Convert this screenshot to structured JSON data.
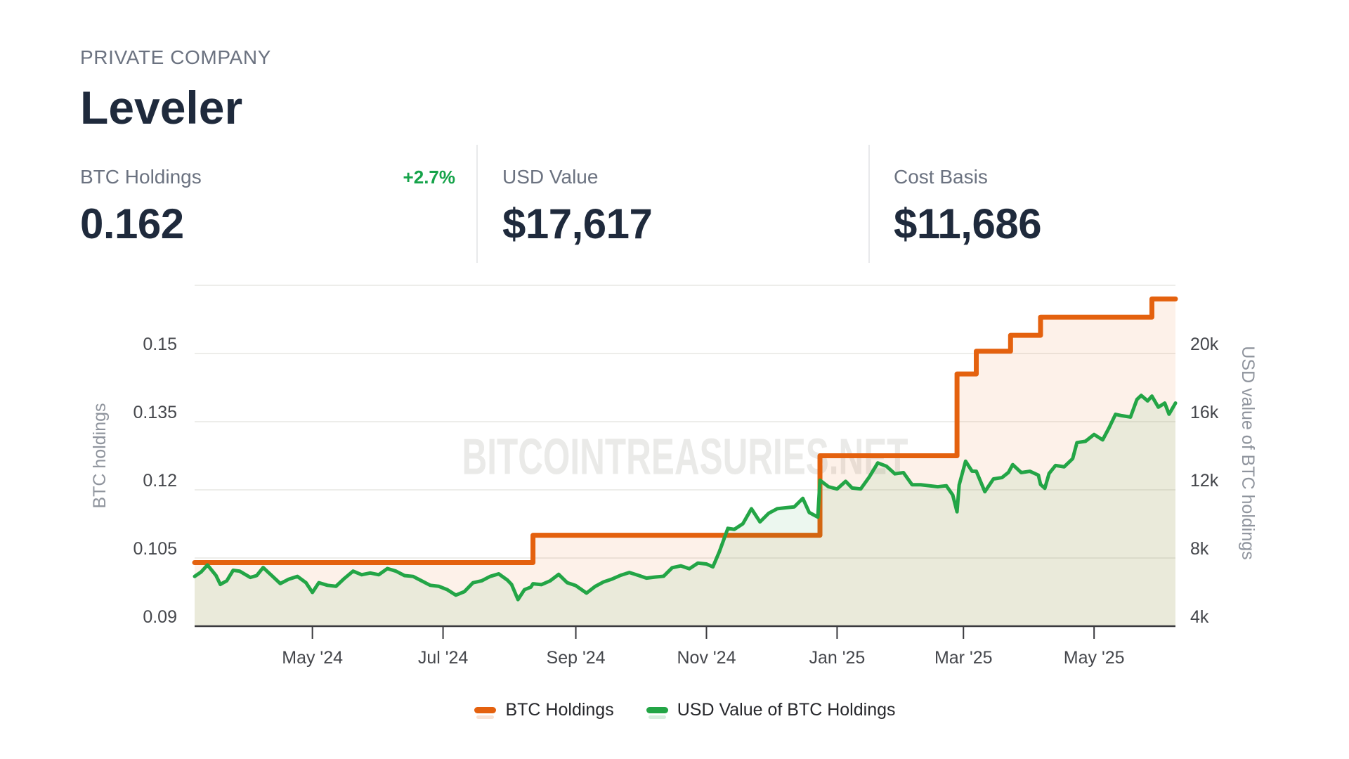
{
  "header": {
    "eyebrow": "PRIVATE COMPANY",
    "title": "Leveler"
  },
  "stats": [
    {
      "label": "BTC Holdings",
      "badge": "+2.7%",
      "value": "0.162"
    },
    {
      "label": "USD Value",
      "value": "$17,617"
    },
    {
      "label": "Cost Basis",
      "value": "$11,686"
    }
  ],
  "watermark": {
    "text": "BITCOINTREASURIES.NET",
    "color": "#eaeae8"
  },
  "legend": [
    {
      "label": "BTC Holdings",
      "color": "#e4610e"
    },
    {
      "label": "USD Value of BTC Holdings",
      "color": "#23a546"
    }
  ],
  "chart_data": {
    "type": "line",
    "x_range": [
      "2024-03-07",
      "2025-06-08"
    ],
    "x_ticks": [
      {
        "date": "2024-05-01",
        "label": "May '24"
      },
      {
        "date": "2024-07-01",
        "label": "Jul '24"
      },
      {
        "date": "2024-09-01",
        "label": "Sep '24"
      },
      {
        "date": "2024-11-01",
        "label": "Nov '24"
      },
      {
        "date": "2025-01-01",
        "label": "Jan '25"
      },
      {
        "date": "2025-03-01",
        "label": "Mar '25"
      },
      {
        "date": "2025-05-01",
        "label": "May '25"
      }
    ],
    "left_axis": {
      "title": "BTC holdings",
      "min": 0.09,
      "max": 0.165,
      "ticks": [
        {
          "v": 0.09,
          "label": "0.09"
        },
        {
          "v": 0.105,
          "label": "0.105"
        },
        {
          "v": 0.12,
          "label": "0.12"
        },
        {
          "v": 0.135,
          "label": "0.135"
        },
        {
          "v": 0.15,
          "label": "0.15"
        }
      ],
      "gridlines": [
        0.105,
        0.12,
        0.135,
        0.15,
        0.165
      ]
    },
    "right_axis": {
      "title": "USD value of BTC holdings",
      "min": 4000,
      "max": 24000,
      "ticks": [
        {
          "v": 4000,
          "label": "4k"
        },
        {
          "v": 8000,
          "label": "8k"
        },
        {
          "v": 12000,
          "label": "12k"
        },
        {
          "v": 16000,
          "label": "16k"
        },
        {
          "v": 20000,
          "label": "20k"
        }
      ]
    },
    "series": [
      {
        "name": "BTC Holdings",
        "axis": "left",
        "render": "step",
        "color": "#e4610e",
        "stroke_width": 7,
        "fill_opacity": 0.09,
        "points": [
          [
            "2024-03-07",
            0.104
          ],
          [
            "2024-08-12",
            0.11
          ],
          [
            "2024-12-24",
            0.1275
          ],
          [
            "2025-02-26",
            0.1455
          ],
          [
            "2025-03-07",
            0.1505
          ],
          [
            "2025-03-23",
            0.154
          ],
          [
            "2025-04-06",
            0.158
          ],
          [
            "2025-05-28",
            0.162
          ],
          [
            "2025-06-08",
            0.162
          ]
        ]
      },
      {
        "name": "USD Value of BTC Holdings",
        "axis": "right",
        "render": "line",
        "color": "#23a546",
        "stroke_width": 5,
        "fill_opacity": 0.085,
        "points": [
          [
            "2024-03-07",
            6920
          ],
          [
            "2024-03-10",
            7180
          ],
          [
            "2024-03-13",
            7590
          ],
          [
            "2024-03-17",
            6970
          ],
          [
            "2024-03-19",
            6450
          ],
          [
            "2024-03-22",
            6660
          ],
          [
            "2024-03-25",
            7280
          ],
          [
            "2024-03-28",
            7230
          ],
          [
            "2024-04-02",
            6860
          ],
          [
            "2024-04-05",
            6970
          ],
          [
            "2024-04-08",
            7440
          ],
          [
            "2024-04-12",
            6970
          ],
          [
            "2024-04-16",
            6500
          ],
          [
            "2024-04-20",
            6760
          ],
          [
            "2024-04-24",
            6920
          ],
          [
            "2024-04-28",
            6550
          ],
          [
            "2024-05-01",
            5980
          ],
          [
            "2024-05-04",
            6550
          ],
          [
            "2024-05-08",
            6400
          ],
          [
            "2024-05-12",
            6340
          ],
          [
            "2024-05-16",
            6810
          ],
          [
            "2024-05-20",
            7230
          ],
          [
            "2024-05-24",
            7020
          ],
          [
            "2024-05-28",
            7120
          ],
          [
            "2024-06-01",
            7020
          ],
          [
            "2024-06-05",
            7380
          ],
          [
            "2024-06-09",
            7230
          ],
          [
            "2024-06-13",
            6970
          ],
          [
            "2024-06-17",
            6920
          ],
          [
            "2024-06-21",
            6660
          ],
          [
            "2024-06-25",
            6400
          ],
          [
            "2024-06-29",
            6340
          ],
          [
            "2024-07-03",
            6140
          ],
          [
            "2024-07-07",
            5820
          ],
          [
            "2024-07-11",
            6030
          ],
          [
            "2024-07-15",
            6550
          ],
          [
            "2024-07-19",
            6660
          ],
          [
            "2024-07-23",
            6920
          ],
          [
            "2024-07-27",
            7070
          ],
          [
            "2024-07-31",
            6710
          ],
          [
            "2024-08-02",
            6450
          ],
          [
            "2024-08-05",
            5560
          ],
          [
            "2024-08-08",
            6140
          ],
          [
            "2024-08-11",
            6290
          ],
          [
            "2024-08-12",
            6490
          ],
          [
            "2024-08-16",
            6440
          ],
          [
            "2024-08-20",
            6660
          ],
          [
            "2024-08-24",
            7040
          ],
          [
            "2024-08-28",
            6550
          ],
          [
            "2024-09-01",
            6380
          ],
          [
            "2024-09-06",
            5940
          ],
          [
            "2024-09-10",
            6330
          ],
          [
            "2024-09-14",
            6600
          ],
          [
            "2024-09-18",
            6770
          ],
          [
            "2024-09-22",
            6990
          ],
          [
            "2024-09-26",
            7150
          ],
          [
            "2024-09-30",
            6990
          ],
          [
            "2024-10-04",
            6820
          ],
          [
            "2024-10-08",
            6880
          ],
          [
            "2024-10-12",
            6930
          ],
          [
            "2024-10-16",
            7430
          ],
          [
            "2024-10-20",
            7540
          ],
          [
            "2024-10-24",
            7370
          ],
          [
            "2024-10-28",
            7700
          ],
          [
            "2024-11-01",
            7650
          ],
          [
            "2024-11-04",
            7480
          ],
          [
            "2024-11-07",
            8360
          ],
          [
            "2024-11-11",
            9740
          ],
          [
            "2024-11-14",
            9680
          ],
          [
            "2024-11-18",
            10010
          ],
          [
            "2024-11-22",
            10890
          ],
          [
            "2024-11-26",
            10120
          ],
          [
            "2024-11-30",
            10620
          ],
          [
            "2024-12-04",
            10890
          ],
          [
            "2024-12-08",
            10950
          ],
          [
            "2024-12-12",
            11000
          ],
          [
            "2024-12-16",
            11500
          ],
          [
            "2024-12-19",
            10670
          ],
          [
            "2024-12-23",
            10400
          ],
          [
            "2024-12-24",
            12560
          ],
          [
            "2024-12-28",
            12180
          ],
          [
            "2025-01-01",
            12050
          ],
          [
            "2025-01-05",
            12500
          ],
          [
            "2025-01-08",
            12110
          ],
          [
            "2025-01-12",
            12050
          ],
          [
            "2025-01-16",
            12750
          ],
          [
            "2025-01-20",
            13580
          ],
          [
            "2025-01-24",
            13390
          ],
          [
            "2025-01-28",
            12940
          ],
          [
            "2025-02-01",
            13010
          ],
          [
            "2025-02-05",
            12300
          ],
          [
            "2025-02-09",
            12300
          ],
          [
            "2025-02-13",
            12240
          ],
          [
            "2025-02-17",
            12180
          ],
          [
            "2025-02-21",
            12240
          ],
          [
            "2025-02-24",
            11700
          ],
          [
            "2025-02-26",
            10710
          ],
          [
            "2025-02-27",
            12290
          ],
          [
            "2025-03-02",
            13680
          ],
          [
            "2025-03-05",
            13100
          ],
          [
            "2025-03-07",
            13090
          ],
          [
            "2025-03-11",
            11890
          ],
          [
            "2025-03-15",
            12640
          ],
          [
            "2025-03-19",
            12720
          ],
          [
            "2025-03-22",
            13020
          ],
          [
            "2025-03-24",
            13480
          ],
          [
            "2025-03-28",
            13010
          ],
          [
            "2025-04-01",
            13090
          ],
          [
            "2025-04-05",
            12860
          ],
          [
            "2025-04-06",
            12320
          ],
          [
            "2025-04-08",
            12090
          ],
          [
            "2025-04-10",
            12960
          ],
          [
            "2025-04-13",
            13430
          ],
          [
            "2025-04-17",
            13350
          ],
          [
            "2025-04-21",
            13830
          ],
          [
            "2025-04-23",
            14770
          ],
          [
            "2025-04-27",
            14850
          ],
          [
            "2025-05-01",
            15250
          ],
          [
            "2025-05-05",
            14930
          ],
          [
            "2025-05-08",
            15640
          ],
          [
            "2025-05-11",
            16430
          ],
          [
            "2025-05-14",
            16350
          ],
          [
            "2025-05-18",
            16270
          ],
          [
            "2025-05-21",
            17300
          ],
          [
            "2025-05-23",
            17540
          ],
          [
            "2025-05-26",
            17220
          ],
          [
            "2025-05-28",
            17500
          ],
          [
            "2025-05-31",
            16850
          ],
          [
            "2025-06-03",
            17090
          ],
          [
            "2025-06-05",
            16440
          ],
          [
            "2025-06-08",
            17090
          ]
        ]
      }
    ]
  }
}
